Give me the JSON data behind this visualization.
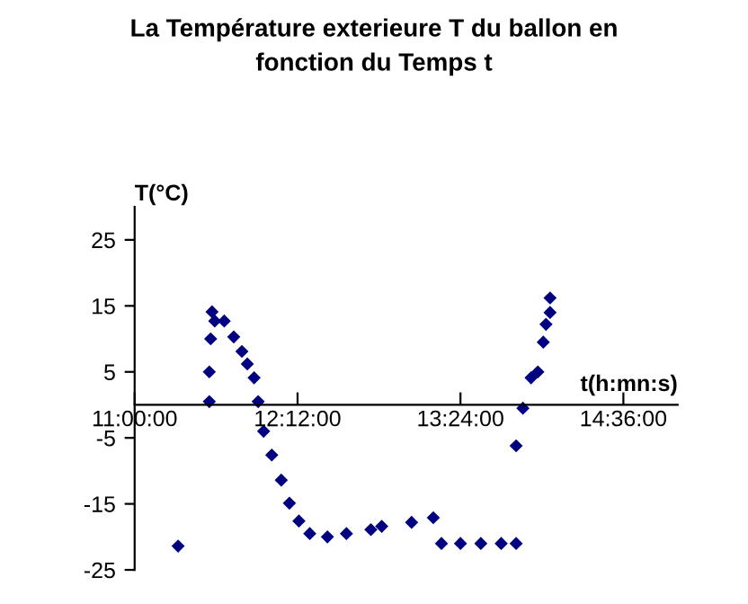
{
  "chart_data": {
    "type": "scatter",
    "title": "La Température exterieure T du ballon en\nfonction du Temps t",
    "xlabel": "t(h:mn:s)",
    "ylabel": "T(°C)",
    "x": [
      11.32,
      11.55,
      11.55,
      11.56,
      11.57,
      11.59,
      11.66,
      11.73,
      11.79,
      11.83,
      11.88,
      11.91,
      11.95,
      12.01,
      12.08,
      12.14,
      12.21,
      12.29,
      12.42,
      12.56,
      12.74,
      12.82,
      13.04,
      13.2,
      13.26,
      13.4,
      13.55,
      13.7,
      13.81,
      13.81,
      13.86,
      13.92,
      13.97,
      14.01,
      14.03,
      14.06,
      14.06
    ],
    "series": [
      {
        "color": "#000080",
        "values": [
          -21.4,
          0.5,
          5,
          10,
          14.1,
          12.7,
          12.7,
          10.3,
          8.1,
          6.2,
          4.1,
          0.5,
          -4,
          -7.6,
          -11.4,
          -14.9,
          -17.6,
          -19.5,
          -20,
          -19.5,
          -18.9,
          -18.4,
          -17.8,
          -17.1,
          -21,
          -21,
          -21,
          -21,
          -21,
          -6.2,
          -0.5,
          4.1,
          5,
          9.5,
          12.2,
          14,
          16.2
        ]
      }
    ],
    "xlim": [
      11,
      15
    ],
    "xticks": [
      {
        "value": 11,
        "label": "11:00:00"
      },
      {
        "value": 12.2,
        "label": "12:12:00"
      },
      {
        "value": 13.4,
        "label": "13:24:00"
      },
      {
        "value": 14.6,
        "label": "14:36:00"
      }
    ],
    "ylim": [
      -25,
      30
    ],
    "yticks": [
      -25,
      -15,
      -5,
      5,
      15,
      25
    ],
    "marker": "diamond",
    "grid": false,
    "legend": false
  }
}
